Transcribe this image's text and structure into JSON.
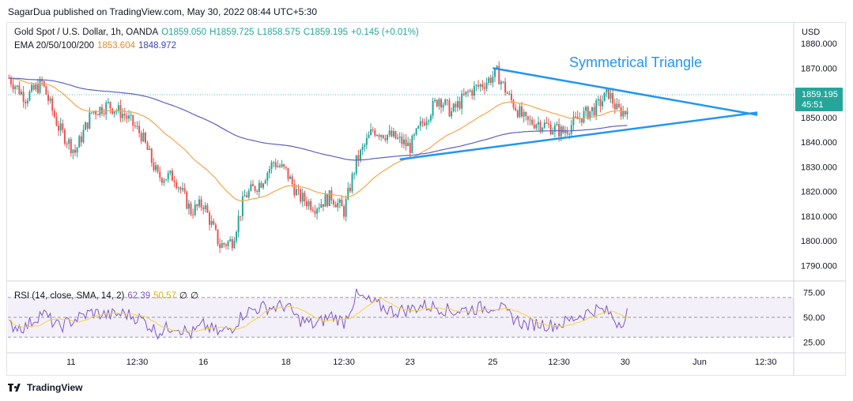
{
  "header": {
    "publisher_line": "SagarDua published on TradingView.com, May 30, 2022 08:44 UTC+5:30"
  },
  "legend": {
    "symbol": "Gold Spot / U.S. Dollar, 1h, OANDA",
    "open": "O1859.050",
    "high": "H1859.725",
    "low": "L1858.575",
    "close": "C1859.195",
    "change": "+0.145 (+0.01%)",
    "ema_label": "EMA 20/50/100/200",
    "ema_value_1": "1853.604",
    "ema_value_2": "1848.972"
  },
  "rsi_legend": {
    "label": "RSI (14, close, SMA, 14, 2)",
    "rsi_value": "62.39",
    "sma_value": "50.57",
    "extra_1": "∅",
    "extra_2": "∅"
  },
  "price_axis": {
    "currency": "USD",
    "last_price": "1859.195",
    "countdown": "45:51"
  },
  "annotation": {
    "text": "Symmetrical Triangle"
  },
  "footer": {
    "brand": "TradingView"
  },
  "colors": {
    "up": "#26a69a",
    "down": "#ef5350",
    "ema_fast": "#f7a54a",
    "ema_slow": "#5b5fc7",
    "trendline": "#2196f3",
    "rsi": "#7e57c2",
    "rsi_sma": "#f5d33f",
    "price_label_bg": "#26a69a"
  },
  "chart_data": {
    "type": "candlestick",
    "price_axis_ticks": [
      "1880.000",
      "1870.000",
      "1860.000",
      "1850.000",
      "1840.000",
      "1830.000",
      "1820.000",
      "1810.000",
      "1800.000",
      "1790.000"
    ],
    "price_axis_values": [
      1880,
      1870,
      1860,
      1850,
      1840,
      1830,
      1820,
      1810,
      1800,
      1790
    ],
    "ylim": [
      1784,
      1888
    ],
    "rsi_axis_ticks": [
      "75.00",
      "50.00",
      "25.00"
    ],
    "rsi_axis_values": [
      75,
      50,
      25
    ],
    "rsi_ylim": [
      15,
      85
    ],
    "x_ticks": [
      "11",
      "12:30",
      "16",
      "18",
      "12:30",
      "23",
      "25",
      "12:30",
      "30",
      "Jun",
      "12:30"
    ],
    "x_tick_index": [
      30,
      62,
      94,
      134,
      162,
      194,
      234,
      266,
      298,
      334,
      366
    ],
    "bars": 300,
    "close_path_anchors": [
      [
        0,
        1866
      ],
      [
        8,
        1858
      ],
      [
        16,
        1864
      ],
      [
        24,
        1846
      ],
      [
        32,
        1836
      ],
      [
        40,
        1852
      ],
      [
        48,
        1855
      ],
      [
        56,
        1851
      ],
      [
        64,
        1843
      ],
      [
        72,
        1826
      ],
      [
        80,
        1826
      ],
      [
        88,
        1812
      ],
      [
        94,
        1815
      ],
      [
        102,
        1798
      ],
      [
        108,
        1800
      ],
      [
        114,
        1818
      ],
      [
        122,
        1824
      ],
      [
        128,
        1832
      ],
      [
        134,
        1828
      ],
      [
        140,
        1818
      ],
      [
        148,
        1814
      ],
      [
        156,
        1818
      ],
      [
        162,
        1812
      ],
      [
        168,
        1832
      ],
      [
        176,
        1845
      ],
      [
        186,
        1842
      ],
      [
        194,
        1838
      ],
      [
        200,
        1848
      ],
      [
        208,
        1858
      ],
      [
        214,
        1852
      ],
      [
        222,
        1860
      ],
      [
        230,
        1864
      ],
      [
        236,
        1868
      ],
      [
        242,
        1858
      ],
      [
        250,
        1848
      ],
      [
        256,
        1848
      ],
      [
        262,
        1846
      ],
      [
        268,
        1844
      ],
      [
        276,
        1850
      ],
      [
        284,
        1854
      ],
      [
        290,
        1860
      ],
      [
        294,
        1853
      ],
      [
        298,
        1852
      ],
      [
        300,
        1859
      ]
    ],
    "trendlines": {
      "upper": {
        "from": [
          234,
          1870
        ],
        "to": [
          362,
          1851
        ]
      },
      "lower": {
        "from": [
          189,
          1833
        ],
        "to": [
          362,
          1852
        ]
      }
    },
    "rsi_path_anchors": [
      [
        0,
        42
      ],
      [
        8,
        40
      ],
      [
        16,
        55
      ],
      [
        24,
        40
      ],
      [
        32,
        48
      ],
      [
        40,
        55
      ],
      [
        48,
        52
      ],
      [
        56,
        54
      ],
      [
        64,
        48
      ],
      [
        72,
        35
      ],
      [
        80,
        42
      ],
      [
        88,
        33
      ],
      [
        94,
        42
      ],
      [
        102,
        34
      ],
      [
        108,
        40
      ],
      [
        114,
        55
      ],
      [
        122,
        60
      ],
      [
        128,
        60
      ],
      [
        134,
        62
      ],
      [
        140,
        48
      ],
      [
        148,
        42
      ],
      [
        156,
        52
      ],
      [
        162,
        45
      ],
      [
        168,
        72
      ],
      [
        176,
        64
      ],
      [
        186,
        56
      ],
      [
        194,
        58
      ],
      [
        200,
        62
      ],
      [
        208,
        60
      ],
      [
        214,
        56
      ],
      [
        222,
        58
      ],
      [
        230,
        60
      ],
      [
        236,
        62
      ],
      [
        242,
        52
      ],
      [
        250,
        42
      ],
      [
        256,
        44
      ],
      [
        262,
        42
      ],
      [
        268,
        44
      ],
      [
        276,
        52
      ],
      [
        284,
        58
      ],
      [
        290,
        55
      ],
      [
        294,
        45
      ],
      [
        298,
        48
      ],
      [
        300,
        62
      ]
    ]
  }
}
